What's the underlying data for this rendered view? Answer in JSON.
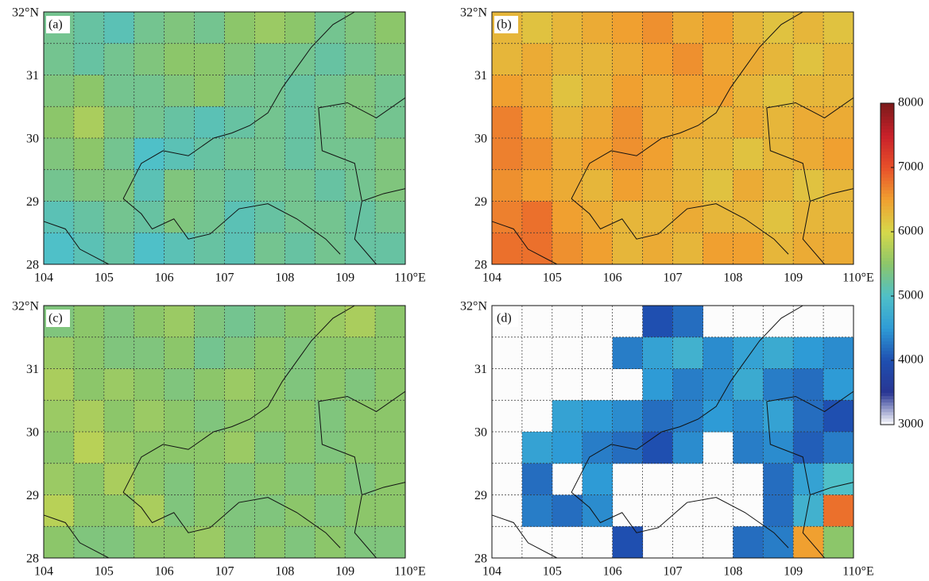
{
  "chart_data": [
    {
      "type": "heatmap",
      "panel_label": "(a)",
      "xlim": [
        104,
        110
      ],
      "ylim": [
        28,
        32
      ],
      "xticks": [
        104,
        105,
        106,
        107,
        108,
        109,
        {
          "value": 110,
          "label": "110°E"
        }
      ],
      "yticks": [
        28,
        29,
        30,
        31,
        {
          "value": 32,
          "label": "32°N"
        }
      ],
      "minor_xticks": [
        104.5,
        105.5,
        106.5,
        107.5,
        108.5,
        109.5
      ],
      "minor_yticks": [
        28.5,
        29.5,
        30.5,
        31.5
      ],
      "grid": true,
      "zlim": [
        3000,
        8000
      ],
      "values": [
        [
          5300,
          5200,
          5100,
          5300,
          5400,
          5300,
          5500,
          5600,
          5500,
          5300,
          5400,
          5500
        ],
        [
          5300,
          5200,
          5300,
          5400,
          5500,
          5500,
          5400,
          5300,
          5300,
          5200,
          5300,
          5400
        ],
        [
          5400,
          5500,
          5300,
          5300,
          5400,
          5500,
          5300,
          5300,
          5200,
          5300,
          5400,
          5300
        ],
        [
          5500,
          5700,
          5400,
          5300,
          5200,
          5100,
          5200,
          5300,
          5200,
          5300,
          5400,
          5300
        ],
        [
          5400,
          5500,
          5300,
          5000,
          5100,
          5200,
          5300,
          5300,
          5200,
          5300,
          5300,
          5400
        ],
        [
          5300,
          5400,
          5400,
          5100,
          5400,
          5300,
          5200,
          5300,
          5300,
          5200,
          5300,
          5400
        ],
        [
          5100,
          5200,
          5300,
          5200,
          5400,
          5300,
          5100,
          5200,
          5300,
          5300,
          5200,
          5300
        ],
        [
          5000,
          5100,
          5200,
          5000,
          5100,
          5200,
          5100,
          5300,
          5200,
          5300,
          5200,
          5200
        ]
      ]
    },
    {
      "type": "heatmap",
      "panel_label": "(b)",
      "xlim": [
        104,
        110
      ],
      "ylim": [
        28,
        32
      ],
      "xticks": [
        104,
        105,
        106,
        107,
        108,
        109,
        {
          "value": 110,
          "label": "110°E"
        }
      ],
      "yticks": [
        28,
        29,
        30,
        31,
        {
          "value": 32,
          "label": "32°N"
        }
      ],
      "minor_xticks": [
        104.5,
        105.5,
        106.5,
        107.5,
        108.5,
        109.5
      ],
      "minor_yticks": [
        28.5,
        29.5,
        30.5,
        31.5
      ],
      "grid": true,
      "zlim": [
        3000,
        8000
      ],
      "zticks": [
        3000,
        4000,
        5000,
        6000,
        7000,
        8000
      ],
      "colormap": [
        "#ffffff",
        "#283593",
        "#1f4fb0",
        "#2e9bd6",
        "#4fc0c8",
        "#8cc66a",
        "#d6d84a",
        "#f0a030",
        "#e8502a",
        "#c8202a",
        "#7a1a1a"
      ],
      "values": [
        [
          6300,
          6200,
          6300,
          6400,
          6500,
          6600,
          6400,
          6500,
          6300,
          6200,
          6300,
          6200
        ],
        [
          6300,
          6400,
          6300,
          6300,
          6400,
          6500,
          6600,
          6400,
          6400,
          6300,
          6200,
          6300
        ],
        [
          6500,
          6400,
          6200,
          6300,
          6500,
          6400,
          6500,
          6500,
          6300,
          6200,
          6300,
          6300
        ],
        [
          6700,
          6500,
          6300,
          6400,
          6600,
          6400,
          6400,
          6300,
          6400,
          6300,
          6400,
          6400
        ],
        [
          6700,
          6600,
          6400,
          6500,
          6600,
          6500,
          6300,
          6300,
          6200,
          6300,
          6400,
          6500
        ],
        [
          6600,
          6500,
          6400,
          6300,
          6500,
          6400,
          6300,
          6200,
          6400,
          6300,
          6200,
          6300
        ],
        [
          6700,
          6800,
          6500,
          6400,
          6300,
          6300,
          6400,
          6300,
          6300,
          6200,
          6300,
          6300
        ],
        [
          6800,
          6800,
          6600,
          6500,
          6300,
          6400,
          6300,
          6500,
          6500,
          6300,
          6400,
          6400
        ]
      ]
    },
    {
      "type": "heatmap",
      "panel_label": "(c)",
      "xlim": [
        104,
        110
      ],
      "ylim": [
        28,
        32
      ],
      "xticks": [
        104,
        105,
        106,
        107,
        108,
        109,
        {
          "value": 110,
          "label": "110°E"
        }
      ],
      "yticks": [
        28,
        29,
        30,
        31,
        {
          "value": 32,
          "label": "32°N"
        }
      ],
      "minor_xticks": [
        104.5,
        105.5,
        106.5,
        107.5,
        108.5,
        109.5
      ],
      "minor_yticks": [
        28.5,
        29.5,
        30.5,
        31.5
      ],
      "grid": true,
      "zlim": [
        3000,
        8000
      ],
      "values": [
        [
          5400,
          5500,
          5400,
          5500,
          5600,
          5400,
          5300,
          5400,
          5500,
          5600,
          5700,
          5500
        ],
        [
          5600,
          5500,
          5400,
          5400,
          5500,
          5300,
          5400,
          5500,
          5400,
          5500,
          5500,
          5500
        ],
        [
          5700,
          5500,
          5600,
          5500,
          5400,
          5500,
          5600,
          5500,
          5400,
          5500,
          5400,
          5500
        ],
        [
          5600,
          5700,
          5500,
          5600,
          5500,
          5400,
          5500,
          5500,
          5500,
          5400,
          5500,
          5500
        ],
        [
          5500,
          5800,
          5600,
          5500,
          5500,
          5500,
          5600,
          5400,
          5500,
          5400,
          5500,
          5500
        ],
        [
          5600,
          5500,
          5700,
          5500,
          5400,
          5500,
          5400,
          5500,
          5400,
          5500,
          5400,
          5500
        ],
        [
          5800,
          5500,
          5500,
          5700,
          5400,
          5500,
          5400,
          5400,
          5500,
          5400,
          5500,
          5500
        ],
        [
          5500,
          5400,
          5400,
          5500,
          5500,
          5600,
          5400,
          5500,
          5400,
          5500,
          5400,
          5400
        ]
      ]
    },
    {
      "type": "heatmap",
      "panel_label": "(d)",
      "xlim": [
        104,
        110
      ],
      "ylim": [
        28,
        32
      ],
      "xticks": [
        104,
        105,
        106,
        107,
        108,
        109,
        {
          "value": 110,
          "label": "110°E"
        }
      ],
      "yticks": [
        28,
        29,
        30,
        31,
        {
          "value": 32,
          "label": "32°N"
        }
      ],
      "minor_xticks": [
        104.5,
        105.5,
        106.5,
        107.5,
        108.5,
        109.5
      ],
      "minor_yticks": [
        28.5,
        29.5,
        30.5,
        31.5
      ],
      "grid": true,
      "zlim": [
        3000,
        8000
      ],
      "values": [
        [
          null,
          null,
          null,
          null,
          null,
          4000,
          4200,
          null,
          null,
          null,
          null,
          null
        ],
        [
          null,
          null,
          null,
          null,
          4300,
          4600,
          4800,
          4400,
          4600,
          4700,
          4500,
          4400
        ],
        [
          null,
          null,
          null,
          null,
          null,
          4500,
          4300,
          4400,
          4700,
          4300,
          4200,
          4500
        ],
        [
          null,
          null,
          4600,
          4500,
          4400,
          4200,
          4300,
          4500,
          4400,
          4600,
          4200,
          4000
        ],
        [
          null,
          4600,
          4500,
          4300,
          4200,
          4000,
          4400,
          null,
          4300,
          4400,
          4100,
          4300
        ],
        [
          null,
          4200,
          null,
          4500,
          null,
          null,
          null,
          null,
          null,
          4200,
          4600,
          5000
        ],
        [
          null,
          4300,
          4200,
          4400,
          null,
          null,
          null,
          null,
          null,
          4200,
          4800,
          6800
        ],
        [
          null,
          null,
          null,
          null,
          4000,
          null,
          null,
          null,
          4200,
          4300,
          6500,
          5500
        ]
      ]
    }
  ]
}
